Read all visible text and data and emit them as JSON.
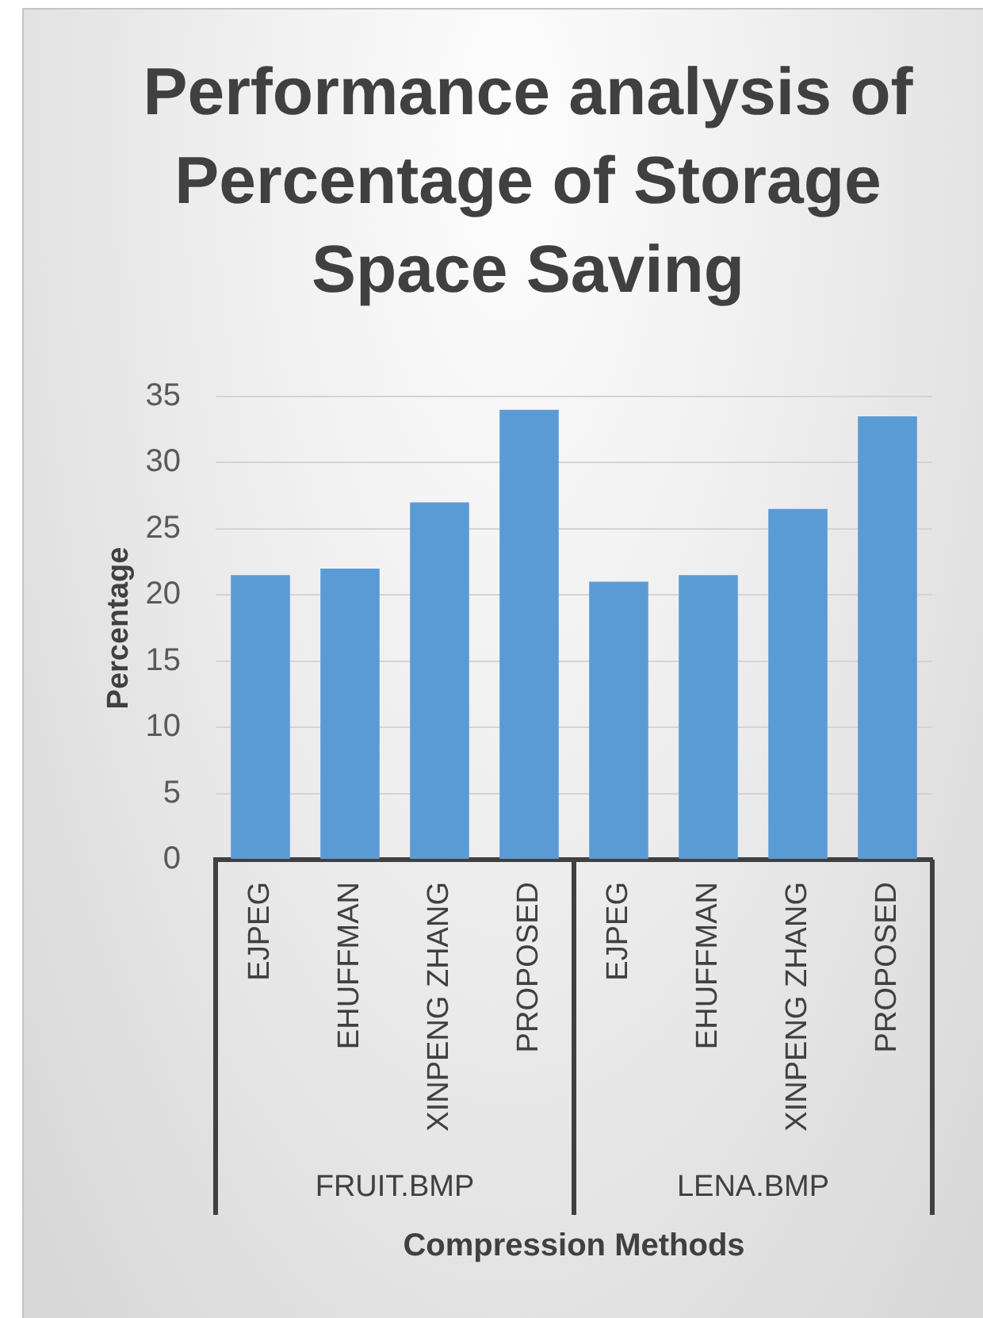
{
  "chart_data": {
    "type": "bar",
    "title": "Performance analysis of Percentage of Storage Space Saving",
    "xlabel": "Compression Methods",
    "ylabel": "Percentage",
    "categories": [
      "EJPEG",
      "EHUFFMAN",
      "XINPENG ZHANG",
      "PROPOSED",
      "EJPEG",
      "EHUFFMAN",
      "XINPENG ZHANG",
      "PROPOSED"
    ],
    "values": [
      21.5,
      22,
      27,
      34,
      21,
      21.5,
      26.5,
      33.5
    ],
    "color": "#5b9bd5",
    "ylim": [
      0,
      35
    ],
    "yticks": [
      0,
      5,
      10,
      15,
      20,
      25,
      30,
      35
    ],
    "grid": "y",
    "legend": false,
    "annotations": [
      "FRUIT.BMP",
      "LENA.BMP"
    ]
  }
}
